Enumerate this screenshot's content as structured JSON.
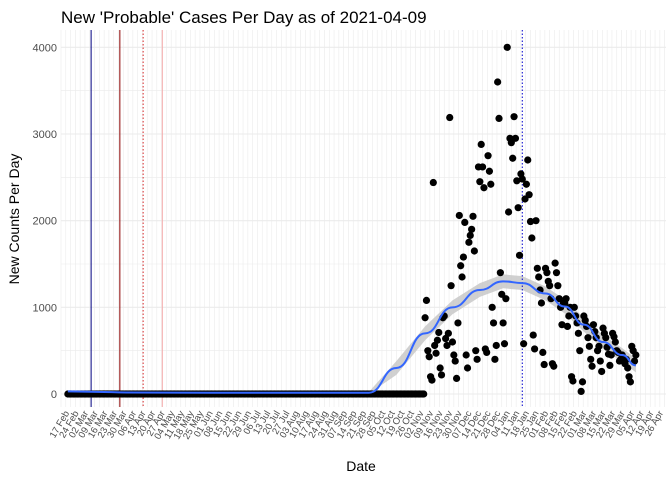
{
  "chart_data": {
    "type": "scatter",
    "title": "New 'Probable' Cases Per Day as of 2021-04-09",
    "xlabel": "Date",
    "ylabel": "New Counts Per Day",
    "ylim": [
      -150,
      4200
    ],
    "xlim": [
      "2020-02-13",
      "2021-04-30"
    ],
    "y_ticks": [
      0,
      1000,
      2000,
      3000,
      4000
    ],
    "grid": true,
    "x_tick_labels": [
      "17 Feb",
      "24 Feb",
      "02 Mar",
      "09 Mar",
      "16 Mar",
      "23 Mar",
      "30 Mar",
      "06 Apr",
      "13 Apr",
      "20 Apr",
      "27 Apr",
      "04 May",
      "11 May",
      "18 May",
      "25 May",
      "01 Jun",
      "08 Jun",
      "15 Jun",
      "22 Jun",
      "29 Jun",
      "06 Jul",
      "13 Jul",
      "20 Jul",
      "27 Jul",
      "03 Aug",
      "10 Aug",
      "17 Aug",
      "24 Aug",
      "31 Aug",
      "07 Sep",
      "14 Sep",
      "21 Sep",
      "28 Sep",
      "05 Oct",
      "12 Oct",
      "19 Oct",
      "26 Oct",
      "02 Nov",
      "09 Nov",
      "16 Nov",
      "23 Nov",
      "30 Nov",
      "07 Dec",
      "14 Dec",
      "21 Dec",
      "28 Dec",
      "04 Jan",
      "11 Jan",
      "18 Jan",
      "25 Jan",
      "01 Feb",
      "08 Feb",
      "15 Feb",
      "22 Feb",
      "01 Mar",
      "08 Mar",
      "15 Mar",
      "22 Mar",
      "29 Mar",
      "05 Apr",
      "12 Apr",
      "19 Apr",
      "26 Apr"
    ],
    "x_tick_dates": [
      "2020-02-17",
      "2020-02-24",
      "2020-03-02",
      "2020-03-09",
      "2020-03-16",
      "2020-03-23",
      "2020-03-30",
      "2020-04-06",
      "2020-04-13",
      "2020-04-20",
      "2020-04-27",
      "2020-05-04",
      "2020-05-11",
      "2020-05-18",
      "2020-05-25",
      "2020-06-01",
      "2020-06-08",
      "2020-06-15",
      "2020-06-22",
      "2020-06-29",
      "2020-07-06",
      "2020-07-13",
      "2020-07-20",
      "2020-07-27",
      "2020-08-03",
      "2020-08-10",
      "2020-08-17",
      "2020-08-24",
      "2020-08-31",
      "2020-09-07",
      "2020-09-14",
      "2020-09-21",
      "2020-09-28",
      "2020-10-05",
      "2020-10-12",
      "2020-10-19",
      "2020-10-26",
      "2020-11-02",
      "2020-11-09",
      "2020-11-16",
      "2020-11-23",
      "2020-11-30",
      "2020-12-07",
      "2020-12-14",
      "2020-12-21",
      "2020-12-28",
      "2021-01-04",
      "2021-01-11",
      "2021-01-18",
      "2021-01-25",
      "2021-02-01",
      "2021-02-08",
      "2021-02-15",
      "2021-02-22",
      "2021-03-01",
      "2021-03-08",
      "2021-03-15",
      "2021-03-22",
      "2021-03-29",
      "2021-04-05",
      "2021-04-12",
      "2021-04-19",
      "2021-04-26"
    ],
    "vertical_lines": [
      {
        "date": "2020-03-06",
        "color": "#000080",
        "style": "solid"
      },
      {
        "date": "2020-03-27",
        "color": "#8b0000",
        "style": "solid"
      },
      {
        "date": "2020-04-13",
        "color": "#d62728",
        "style": "dotted"
      },
      {
        "date": "2020-04-27",
        "color": "#f4a9a9",
        "style": "solid"
      },
      {
        "date": "2021-01-15",
        "color": "#0000cd",
        "style": "dotted"
      }
    ],
    "points_zero_range": [
      "2020-02-18",
      "2020-11-04"
    ],
    "points": [
      [
        "2020-11-06",
        1080
      ],
      [
        "2020-11-05",
        880
      ],
      [
        "2020-11-07",
        500
      ],
      [
        "2020-11-08",
        430
      ],
      [
        "2020-11-09",
        200
      ],
      [
        "2020-11-10",
        160
      ],
      [
        "2020-11-11",
        2440
      ],
      [
        "2020-11-12",
        560
      ],
      [
        "2020-11-13",
        470
      ],
      [
        "2020-11-14",
        620
      ],
      [
        "2020-11-15",
        710
      ],
      [
        "2020-11-16",
        300
      ],
      [
        "2020-11-17",
        220
      ],
      [
        "2020-11-18",
        880
      ],
      [
        "2020-11-19",
        900
      ],
      [
        "2020-11-20",
        640
      ],
      [
        "2020-11-21",
        560
      ],
      [
        "2020-11-22",
        700
      ],
      [
        "2020-11-23",
        3190
      ],
      [
        "2020-11-24",
        1250
      ],
      [
        "2020-11-25",
        600
      ],
      [
        "2020-11-26",
        450
      ],
      [
        "2020-11-27",
        380
      ],
      [
        "2020-11-28",
        180
      ],
      [
        "2020-11-29",
        820
      ],
      [
        "2020-11-30",
        2060
      ],
      [
        "2020-12-01",
        1480
      ],
      [
        "2020-12-02",
        1350
      ],
      [
        "2020-12-03",
        1580
      ],
      [
        "2020-12-04",
        1980
      ],
      [
        "2020-12-05",
        450
      ],
      [
        "2020-12-06",
        300
      ],
      [
        "2020-12-07",
        1750
      ],
      [
        "2020-12-08",
        1830
      ],
      [
        "2020-12-09",
        1900
      ],
      [
        "2020-12-10",
        2050
      ],
      [
        "2020-12-11",
        1650
      ],
      [
        "2020-12-12",
        500
      ],
      [
        "2020-12-13",
        400
      ],
      [
        "2020-12-14",
        2620
      ],
      [
        "2020-12-15",
        2450
      ],
      [
        "2020-12-16",
        2880
      ],
      [
        "2020-12-17",
        2620
      ],
      [
        "2020-12-18",
        2380
      ],
      [
        "2020-12-19",
        520
      ],
      [
        "2020-12-20",
        480
      ],
      [
        "2020-12-21",
        2750
      ],
      [
        "2020-12-22",
        2570
      ],
      [
        "2020-12-23",
        2420
      ],
      [
        "2020-12-24",
        1000
      ],
      [
        "2020-12-25",
        820
      ],
      [
        "2020-12-26",
        400
      ],
      [
        "2020-12-27",
        560
      ],
      [
        "2020-12-28",
        3600
      ],
      [
        "2020-12-29",
        3180
      ],
      [
        "2020-12-30",
        1400
      ],
      [
        "2020-12-31",
        1150
      ],
      [
        "2021-01-01",
        820
      ],
      [
        "2021-01-02",
        580
      ],
      [
        "2021-01-03",
        1100
      ],
      [
        "2021-01-04",
        4000
      ],
      [
        "2021-01-05",
        2100
      ],
      [
        "2021-01-06",
        2950
      ],
      [
        "2021-01-07",
        2900
      ],
      [
        "2021-01-08",
        2720
      ],
      [
        "2021-01-09",
        3200
      ],
      [
        "2021-01-10",
        2950
      ],
      [
        "2021-01-11",
        2460
      ],
      [
        "2021-01-12",
        2150
      ],
      [
        "2021-01-13",
        1600
      ],
      [
        "2021-01-14",
        2540
      ],
      [
        "2021-01-15",
        2480
      ],
      [
        "2021-01-16",
        580
      ],
      [
        "2021-01-17",
        2250
      ],
      [
        "2021-01-18",
        2420
      ],
      [
        "2021-01-19",
        2700
      ],
      [
        "2021-01-20",
        2300
      ],
      [
        "2021-01-21",
        1990
      ],
      [
        "2021-01-22",
        1800
      ],
      [
        "2021-01-23",
        680
      ],
      [
        "2021-01-24",
        520
      ],
      [
        "2021-01-25",
        2000
      ],
      [
        "2021-01-26",
        1450
      ],
      [
        "2021-01-27",
        1350
      ],
      [
        "2021-01-28",
        1200
      ],
      [
        "2021-01-29",
        1050
      ],
      [
        "2021-01-30",
        480
      ],
      [
        "2021-01-31",
        340
      ],
      [
        "2021-02-01",
        1450
      ],
      [
        "2021-02-02",
        1400
      ],
      [
        "2021-02-03",
        1300
      ],
      [
        "2021-02-04",
        1250
      ],
      [
        "2021-02-05",
        1100
      ],
      [
        "2021-02-06",
        350
      ],
      [
        "2021-02-07",
        320
      ],
      [
        "2021-02-08",
        1510
      ],
      [
        "2021-02-09",
        1400
      ],
      [
        "2021-02-10",
        1250
      ],
      [
        "2021-02-11",
        1100
      ],
      [
        "2021-02-12",
        1000
      ],
      [
        "2021-02-13",
        800
      ],
      [
        "2021-02-14",
        1050
      ],
      [
        "2021-02-15",
        1050
      ],
      [
        "2021-02-16",
        1100
      ],
      [
        "2021-02-17",
        780
      ],
      [
        "2021-02-18",
        900
      ],
      [
        "2021-02-19",
        1000
      ],
      [
        "2021-02-20",
        200
      ],
      [
        "2021-02-21",
        150
      ],
      [
        "2021-02-22",
        1000
      ],
      [
        "2021-02-23",
        900
      ],
      [
        "2021-02-24",
        820
      ],
      [
        "2021-02-25",
        700
      ],
      [
        "2021-02-26",
        500
      ],
      [
        "2021-02-27",
        30
      ],
      [
        "2021-02-28",
        140
      ],
      [
        "2021-03-01",
        900
      ],
      [
        "2021-03-02",
        850
      ],
      [
        "2021-03-03",
        780
      ],
      [
        "2021-03-04",
        650
      ],
      [
        "2021-03-05",
        550
      ],
      [
        "2021-03-06",
        400
      ],
      [
        "2021-03-07",
        320
      ],
      [
        "2021-03-08",
        800
      ],
      [
        "2021-03-09",
        720
      ],
      [
        "2021-03-10",
        650
      ],
      [
        "2021-03-11",
        500
      ],
      [
        "2021-03-12",
        550
      ],
      [
        "2021-03-13",
        380
      ],
      [
        "2021-03-14",
        260
      ],
      [
        "2021-03-15",
        760
      ],
      [
        "2021-03-16",
        700
      ],
      [
        "2021-03-17",
        650
      ],
      [
        "2021-03-18",
        540
      ],
      [
        "2021-03-19",
        460
      ],
      [
        "2021-03-20",
        330
      ],
      [
        "2021-03-21",
        450
      ],
      [
        "2021-03-22",
        700
      ],
      [
        "2021-03-23",
        660
      ],
      [
        "2021-03-24",
        600
      ],
      [
        "2021-03-25",
        500
      ],
      [
        "2021-03-26",
        480
      ],
      [
        "2021-03-27",
        380
      ],
      [
        "2021-03-28",
        400
      ],
      [
        "2021-03-29",
        450
      ],
      [
        "2021-03-30",
        420
      ],
      [
        "2021-03-31",
        350
      ],
      [
        "2021-04-01",
        400
      ],
      [
        "2021-04-02",
        300
      ],
      [
        "2021-04-03",
        200
      ],
      [
        "2021-04-04",
        140
      ],
      [
        "2021-04-05",
        550
      ],
      [
        "2021-04-06",
        500
      ],
      [
        "2021-04-07",
        380
      ],
      [
        "2021-04-08",
        450
      ]
    ],
    "trend": [
      [
        "2020-02-18",
        30
      ],
      [
        "2020-03-10",
        25
      ],
      [
        "2020-04-01",
        18
      ],
      [
        "2020-06-01",
        15
      ],
      [
        "2020-09-25",
        15
      ],
      [
        "2020-10-15",
        300
      ],
      [
        "2020-11-05",
        700
      ],
      [
        "2020-11-25",
        1000
      ],
      [
        "2020-12-15",
        1200
      ],
      [
        "2021-01-01",
        1300
      ],
      [
        "2021-01-15",
        1280
      ],
      [
        "2021-02-01",
        1160
      ],
      [
        "2021-02-15",
        1010
      ],
      [
        "2021-03-01",
        800
      ],
      [
        "2021-03-15",
        600
      ],
      [
        "2021-03-29",
        450
      ],
      [
        "2021-04-08",
        330
      ]
    ],
    "band_halfwidth": 80,
    "colors": {
      "points": "#000000",
      "trend": "#3366ff",
      "band": "#c8c8c8",
      "grid": "#ebebeb"
    }
  }
}
